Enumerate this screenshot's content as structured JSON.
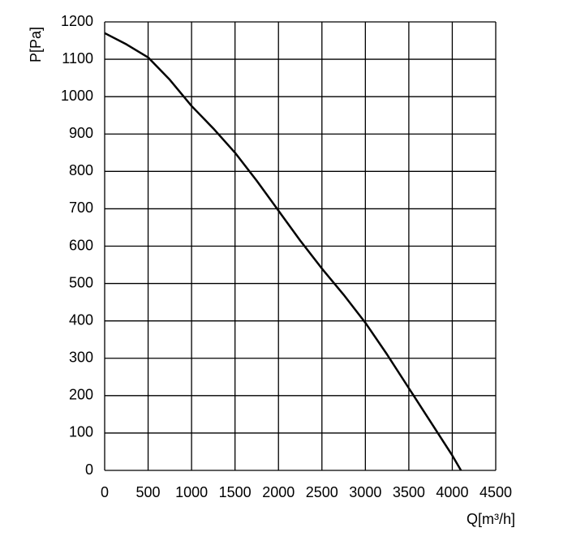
{
  "chart_data": {
    "type": "line",
    "x_label": "Q[m³/h]",
    "y_label": "P[Pa]",
    "x": [
      0,
      250,
      500,
      750,
      1000,
      1250,
      1500,
      1750,
      2000,
      2250,
      2500,
      2750,
      3000,
      3250,
      3500,
      3750,
      4000,
      4100
    ],
    "series": [
      {
        "name": "P",
        "color": "#000000",
        "values": [
          1170,
          1140,
          1105,
          1045,
          975,
          915,
          850,
          775,
          695,
          615,
          540,
          470,
          395,
          310,
          220,
          130,
          40,
          0
        ]
      }
    ],
    "xlim": [
      0,
      4500
    ],
    "xticks": [
      0,
      500,
      1000,
      1500,
      2000,
      2500,
      3000,
      3500,
      4000,
      4500
    ],
    "ylim": [
      0,
      1200
    ],
    "yticks": [
      0,
      100,
      200,
      300,
      400,
      500,
      600,
      700,
      800,
      900,
      1000,
      1100,
      1200
    ],
    "grid": true
  }
}
